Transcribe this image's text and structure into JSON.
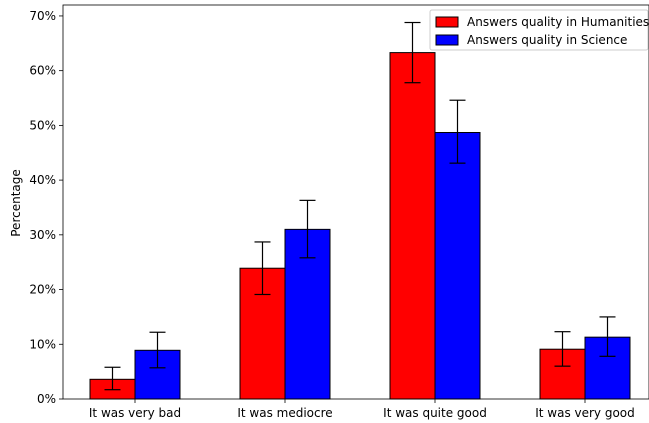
{
  "chart_data": {
    "type": "bar",
    "title": "",
    "xlabel": "",
    "ylabel": "Percentage",
    "ylim": [
      0,
      72
    ],
    "yticks": [
      0,
      10,
      20,
      30,
      40,
      50,
      60,
      70
    ],
    "ytick_suffix": "%",
    "categories": [
      "It was very bad",
      "It was mediocre",
      "It was quite good",
      "It was very good"
    ],
    "series": [
      {
        "name": "Answers quality in Humanities",
        "color": "#ff0000",
        "values": [
          3.6,
          23.9,
          63.3,
          9.1
        ],
        "err_low": [
          1.9,
          4.8,
          5.5,
          3.1
        ],
        "err_high": [
          2.2,
          4.8,
          5.5,
          3.2
        ]
      },
      {
        "name": "Answers quality in Science",
        "color": "#0000ff",
        "values": [
          8.9,
          31.0,
          48.7,
          11.3
        ],
        "err_low": [
          3.2,
          5.2,
          5.6,
          3.5
        ],
        "err_high": [
          3.3,
          5.3,
          5.9,
          3.7
        ]
      }
    ],
    "grid": false,
    "legend": "top-right"
  }
}
